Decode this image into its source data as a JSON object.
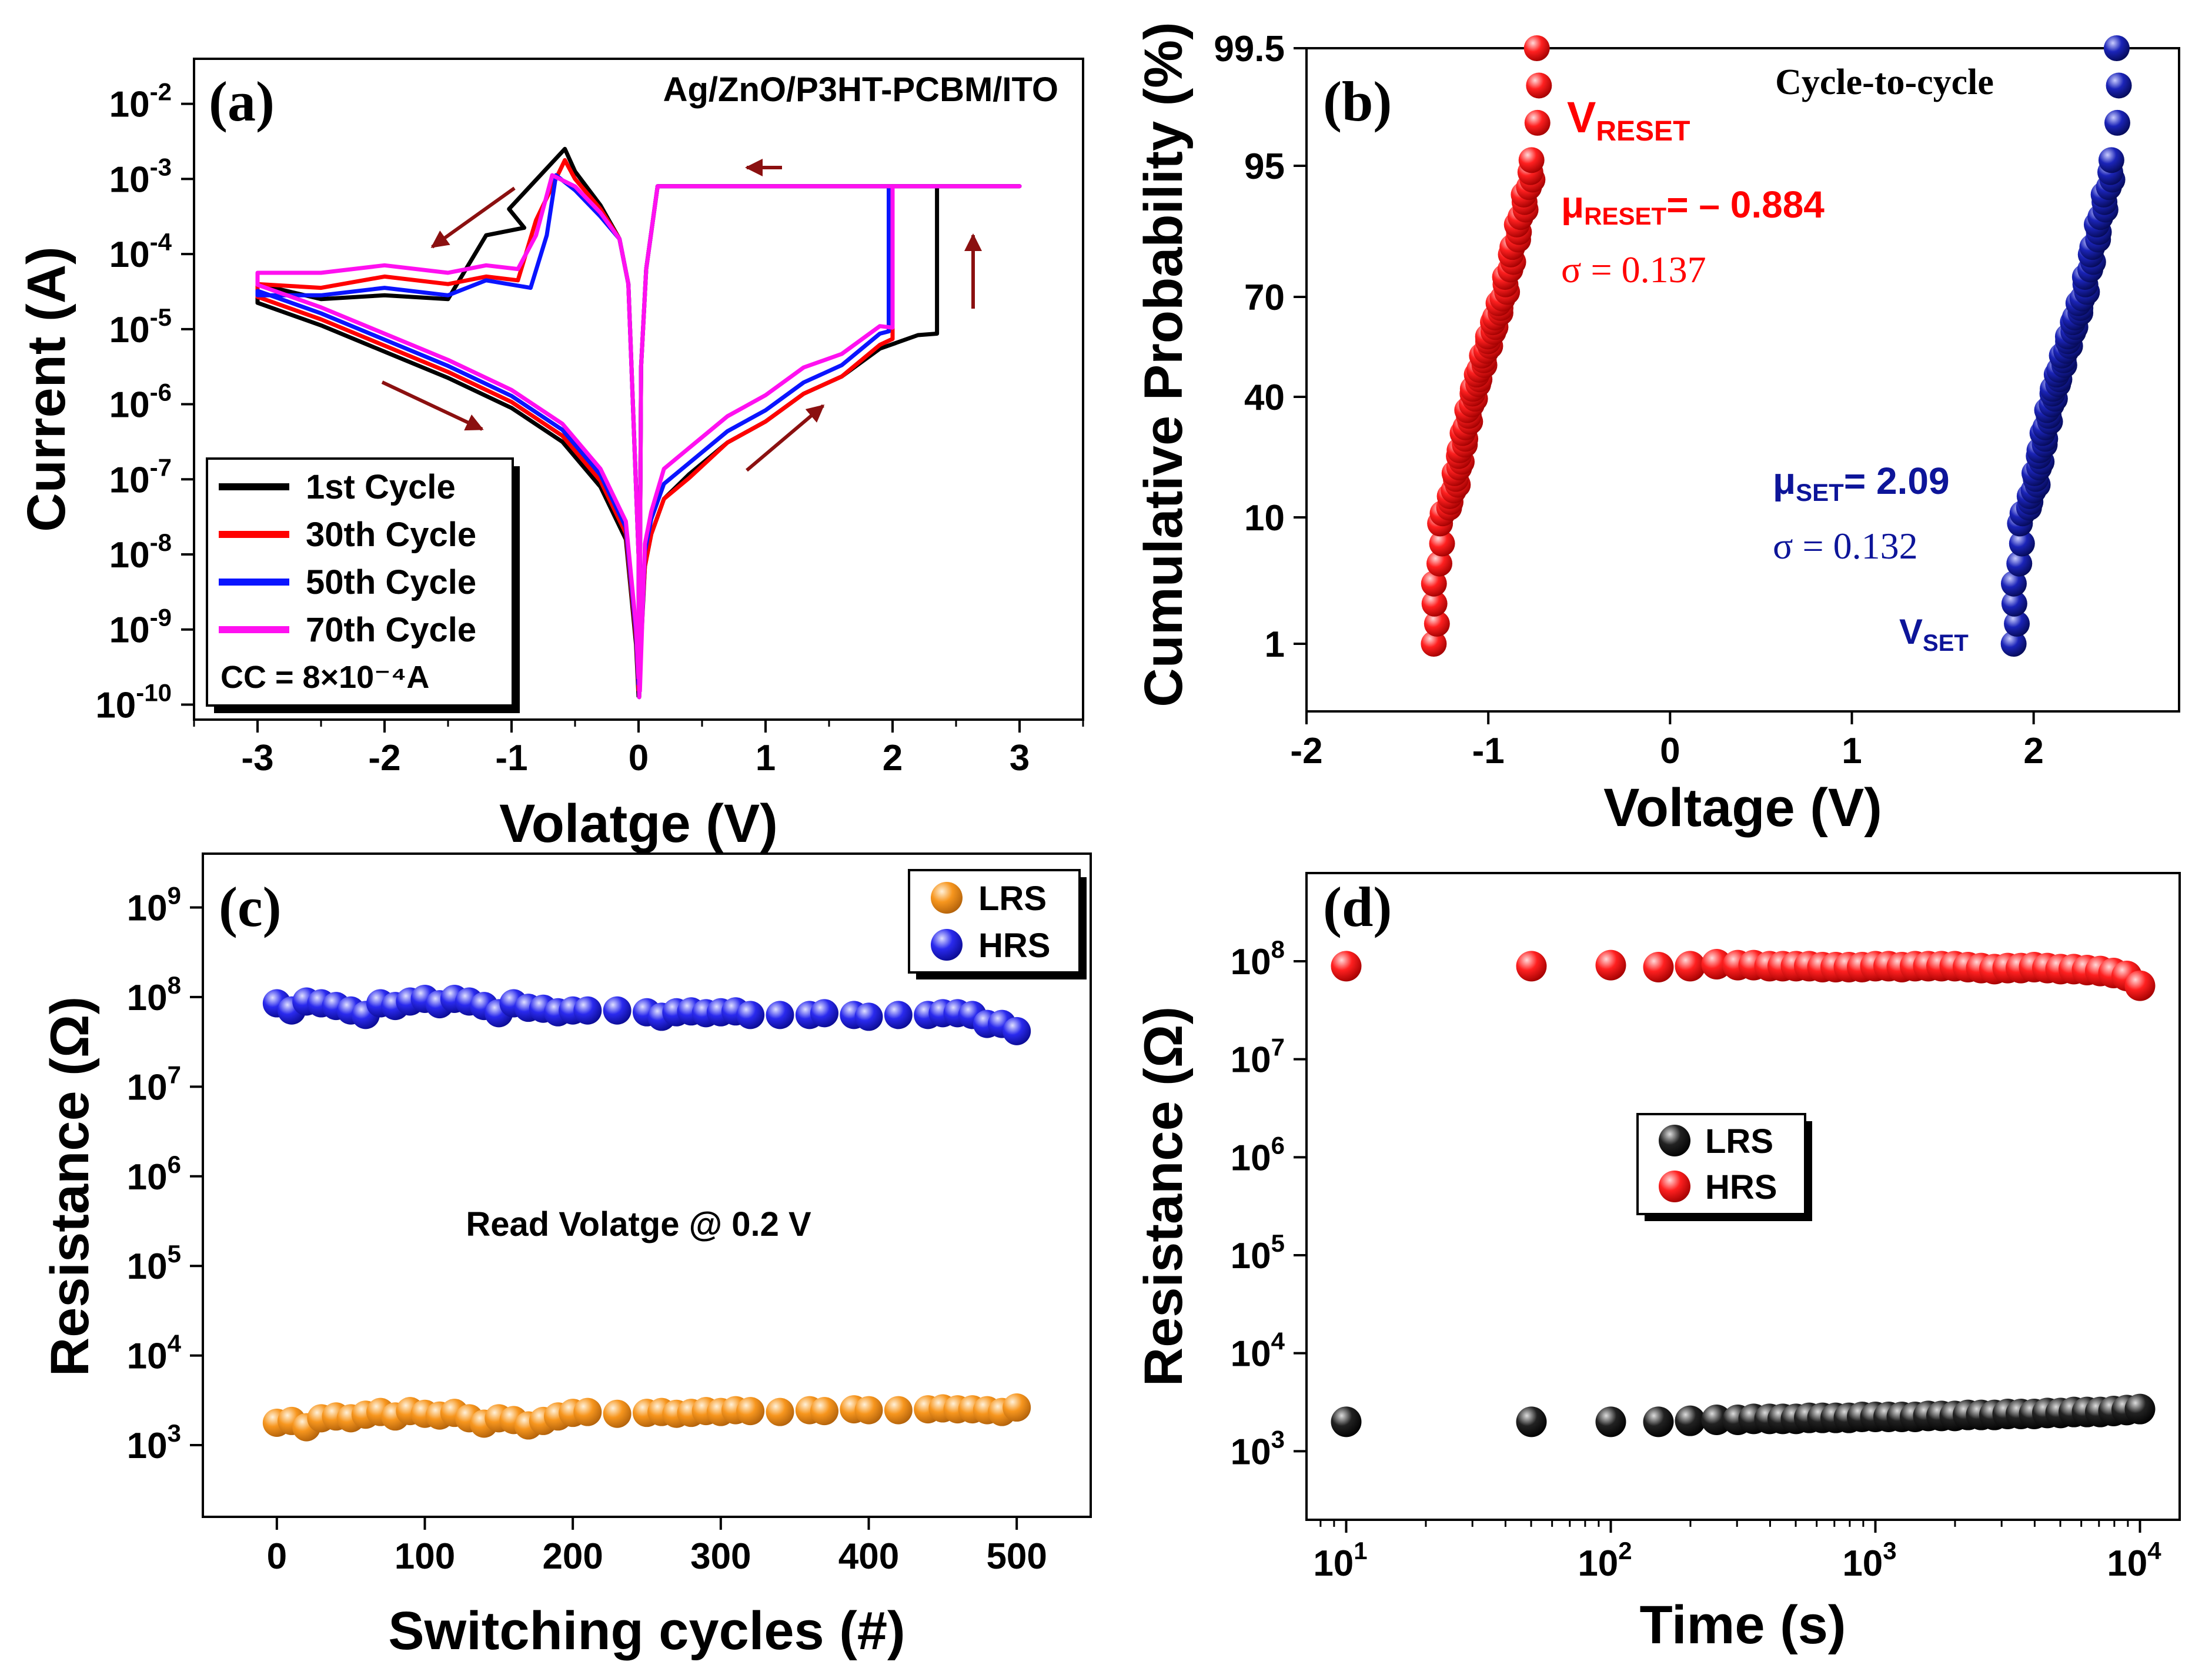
{
  "figure": "Resistive switching characteristics",
  "colors": {
    "black": "#000000",
    "red": "#ff0000",
    "blue": "#0a14ff",
    "magenta": "#ff10f0",
    "navy": "#0d1599",
    "orange": "#f7961e",
    "hrs_blue": "#2626e6",
    "arrow": "#8b1010"
  },
  "chart_data": [
    {
      "panel": "(a)",
      "type": "line",
      "title": "Ag/ZnO/P3HT-PCBM/ITO",
      "xlabel": "Volatge (V)",
      "ylabel": "Current (A)",
      "xlim": [
        -3.5,
        3.5
      ],
      "ylim_log10": [
        -10.2,
        -1.4
      ],
      "xticks": [
        -3,
        -2,
        -1,
        0,
        1,
        2,
        3
      ],
      "yticks": [
        "10^-10",
        "10^-9",
        "10^-8",
        "10^-7",
        "10^-6",
        "10^-5",
        "10^-4",
        "10^-3",
        "10^-2"
      ],
      "compliance_label": "CC = 8×10⁻⁴A",
      "compliance_A": 0.0008,
      "series": [
        {
          "name": "1st Cycle",
          "color": "#000000",
          "set_V": 2.35,
          "reset_V": -1.2,
          "pos_v": [
            0.01,
            0.05,
            0.1,
            0.2,
            0.4,
            0.7,
            1,
            1.3,
            1.6,
            1.9,
            2.2,
            2.35
          ],
          "pos_logI": [
            -9.5,
            -8.2,
            -7.7,
            -7.3,
            -6.9,
            -6.55,
            -6.2,
            -5.9,
            -5.6,
            -5.3,
            -5.05,
            -5.1
          ],
          "neg_lrs_v": [
            0,
            -0.08,
            -0.15,
            -0.3,
            -0.5,
            -0.58
          ],
          "neg_lrs_logI": [
            -8.0,
            -4.4,
            -3.8,
            -3.35,
            -2.9,
            -2.6
          ],
          "hrs_v": [
            -0.9,
            -1.2,
            -1.5,
            -2,
            -2.5,
            -3
          ],
          "hrs_logI": [
            -3.6,
            -3.8,
            -4.55,
            -4.6,
            -4.55,
            -4.45
          ]
        },
        {
          "name": "30th Cycle",
          "color": "#ff0000",
          "set_V": 2.0,
          "reset_V": -0.95,
          "pos_v": [
            0.01,
            0.05,
            0.1,
            0.2,
            0.4,
            0.7,
            1,
            1.3,
            1.6,
            1.9,
            2.0
          ],
          "pos_logI": [
            -9.3,
            -8.2,
            -7.7,
            -7.3,
            -6.95,
            -6.55,
            -6.2,
            -5.9,
            -5.6,
            -5.25,
            -5.1
          ],
          "neg_lrs_v": [
            0,
            -0.08,
            -0.15,
            -0.3,
            -0.5,
            -0.58
          ],
          "neg_lrs_logI": [
            -8.0,
            -4.4,
            -3.8,
            -3.4,
            -3.0,
            -2.75
          ],
          "hrs_v": [
            -0.95,
            -1.2,
            -1.5,
            -2,
            -2.5,
            -3
          ],
          "hrs_logI": [
            -4.3,
            -4.35,
            -4.35,
            -4.35,
            -4.4,
            -4.45
          ]
        },
        {
          "name": "50th Cycle",
          "color": "#0a14ff",
          "set_V": 1.97,
          "reset_V": -0.85,
          "pos_v": [
            0.01,
            0.05,
            0.1,
            0.2,
            0.4,
            0.7,
            1,
            1.3,
            1.6,
            1.9,
            1.97
          ],
          "pos_logI": [
            -9.6,
            -8.0,
            -7.5,
            -7.1,
            -6.75,
            -6.4,
            -6.05,
            -5.75,
            -5.45,
            -5.1,
            -5.0
          ],
          "neg_lrs_v": [
            0,
            -0.08,
            -0.15,
            -0.3,
            -0.5,
            -0.65
          ],
          "neg_lrs_logI": [
            -8.0,
            -4.4,
            -3.8,
            -3.5,
            -3.15,
            -2.95
          ],
          "hrs_v": [
            -0.85,
            -1.2,
            -1.5,
            -2,
            -2.5,
            -3
          ],
          "hrs_logI": [
            -4.4,
            -4.4,
            -4.5,
            -4.5,
            -4.5,
            -4.6
          ]
        },
        {
          "name": "70th Cycle",
          "color": "#ff10f0",
          "set_V": 2.0,
          "reset_V": -0.95,
          "pos_v": [
            0.01,
            0.05,
            0.1,
            0.2,
            0.4,
            0.7,
            1,
            1.3,
            1.6,
            1.9,
            2.0
          ],
          "pos_logI": [
            -9.8,
            -7.9,
            -7.4,
            -6.9,
            -6.55,
            -6.2,
            -5.85,
            -5.55,
            -5.3,
            -5.0,
            -4.95
          ],
          "neg_lrs_v": [
            0,
            -0.08,
            -0.15,
            -0.3,
            -0.5,
            -0.68
          ],
          "neg_lrs_logI": [
            -8.0,
            -4.4,
            -3.8,
            -3.45,
            -3.1,
            -2.95
          ],
          "hrs_v": [
            -0.95,
            -1.2,
            -1.5,
            -2,
            -2.5,
            -3
          ],
          "hrs_logI": [
            -4.15,
            -4.2,
            -4.2,
            -4.2,
            -4.2,
            -4.3
          ]
        }
      ]
    },
    {
      "panel": "(b)",
      "type": "scatter",
      "title": "Cycle-to-cycle",
      "xlabel": "Voltage (V)",
      "ylabel": "Cumulative Probability (%)",
      "xlim": [
        -2,
        3
      ],
      "xticks": [
        -2,
        -1,
        0,
        1,
        2
      ],
      "yticks": [
        1,
        10,
        40,
        70,
        95,
        99.5
      ],
      "reset": {
        "label": "V",
        "label_sub": "RESET",
        "mu_label": "μ",
        "mu_sub": "RESET",
        "mu_value": "= – 0.884",
        "sigma_text": "σ = 0.137",
        "mu": -0.884,
        "sigma": 0.137,
        "v_min": -1.3,
        "v_max": -0.72,
        "color": "#ff0000"
      },
      "set": {
        "label": "V",
        "label_sub": "SET",
        "mu_label": "μ",
        "mu_sub": "SET",
        "mu_value": "= 2.09",
        "sigma_text": "σ = 0.132",
        "mu": 2.09,
        "sigma": 0.132,
        "v_min": 1.89,
        "v_max": 2.47,
        "color": "#0d1599"
      }
    },
    {
      "panel": "(c)",
      "type": "scatter",
      "xlabel": "Switching cycles (#)",
      "ylabel": "Resistance (Ω)",
      "xlim": [
        -50,
        550
      ],
      "ylim_log10": [
        2.2,
        9.6
      ],
      "xticks": [
        0,
        100,
        200,
        300,
        400,
        500
      ],
      "yticks": [
        "10^3",
        "10^4",
        "10^5",
        "10^6",
        "10^7",
        "10^8",
        "10^9"
      ],
      "annotation": "Read Volatge @ 0.2 V",
      "x": [
        0,
        10,
        20,
        30,
        40,
        50,
        60,
        70,
        80,
        90,
        100,
        110,
        120,
        130,
        140,
        150,
        160,
        170,
        180,
        190,
        200,
        210,
        230,
        250,
        260,
        270,
        280,
        290,
        300,
        310,
        320,
        340,
        360,
        370,
        390,
        400,
        420,
        440,
        450,
        460,
        470,
        480,
        490,
        500
      ],
      "series": [
        {
          "name": "LRS",
          "color": "#f7961e",
          "log10": [
            3.25,
            3.27,
            3.2,
            3.3,
            3.32,
            3.3,
            3.34,
            3.37,
            3.32,
            3.38,
            3.35,
            3.33,
            3.36,
            3.3,
            3.24,
            3.3,
            3.28,
            3.22,
            3.27,
            3.32,
            3.36,
            3.37,
            3.35,
            3.36,
            3.37,
            3.35,
            3.36,
            3.38,
            3.37,
            3.39,
            3.38,
            3.37,
            3.39,
            3.38,
            3.4,
            3.39,
            3.39,
            3.4,
            3.41,
            3.4,
            3.4,
            3.39,
            3.37,
            3.42
          ]
        },
        {
          "name": "HRS",
          "color": "#2626e6",
          "log10": [
            7.93,
            7.85,
            7.95,
            7.93,
            7.9,
            7.85,
            7.8,
            7.93,
            7.9,
            7.95,
            7.98,
            7.92,
            7.98,
            7.95,
            7.9,
            7.82,
            7.93,
            7.88,
            7.87,
            7.83,
            7.85,
            7.85,
            7.85,
            7.83,
            7.78,
            7.83,
            7.84,
            7.82,
            7.83,
            7.84,
            7.8,
            7.8,
            7.8,
            7.82,
            7.8,
            7.78,
            7.8,
            7.8,
            7.82,
            7.82,
            7.8,
            7.7,
            7.7,
            7.62
          ]
        }
      ]
    },
    {
      "panel": "(d)",
      "type": "scatter",
      "xlabel": "Time (s)",
      "ylabel": "Resistance (Ω)",
      "xlim_log10": [
        0.85,
        4.15
      ],
      "ylim_log10": [
        2.3,
        8.9
      ],
      "xticks": [
        "10^1",
        "10^2",
        "10^3",
        "10^4"
      ],
      "yticks": [
        "10^3",
        "10^4",
        "10^5",
        "10^6",
        "10^7",
        "10^8"
      ],
      "x_log10": [
        1,
        1.7,
        2,
        2.18,
        2.3,
        2.4,
        2.48,
        2.54,
        2.6,
        2.65,
        2.7,
        2.75,
        2.8,
        2.85,
        2.9,
        2.95,
        3,
        3.05,
        3.1,
        3.15,
        3.2,
        3.25,
        3.3,
        3.35,
        3.4,
        3.45,
        3.5,
        3.55,
        3.6,
        3.65,
        3.7,
        3.75,
        3.8,
        3.85,
        3.9,
        3.95,
        4
      ],
      "series": [
        {
          "name": "LRS",
          "color": "#000000",
          "log10": [
            3.3,
            3.3,
            3.3,
            3.3,
            3.31,
            3.32,
            3.32,
            3.33,
            3.33,
            3.33,
            3.33,
            3.34,
            3.34,
            3.34,
            3.34,
            3.35,
            3.35,
            3.35,
            3.35,
            3.35,
            3.36,
            3.36,
            3.36,
            3.37,
            3.37,
            3.37,
            3.38,
            3.38,
            3.38,
            3.39,
            3.39,
            3.4,
            3.4,
            3.4,
            3.41,
            3.42,
            3.43
          ]
        },
        {
          "name": "HRS",
          "color": "#ff0000",
          "log10": [
            7.95,
            7.95,
            7.96,
            7.94,
            7.95,
            7.97,
            7.96,
            7.96,
            7.95,
            7.95,
            7.95,
            7.95,
            7.94,
            7.94,
            7.94,
            7.94,
            7.95,
            7.95,
            7.94,
            7.95,
            7.95,
            7.95,
            7.95,
            7.94,
            7.93,
            7.92,
            7.93,
            7.93,
            7.94,
            7.93,
            7.92,
            7.92,
            7.91,
            7.9,
            7.88,
            7.85,
            7.75
          ]
        }
      ]
    }
  ]
}
